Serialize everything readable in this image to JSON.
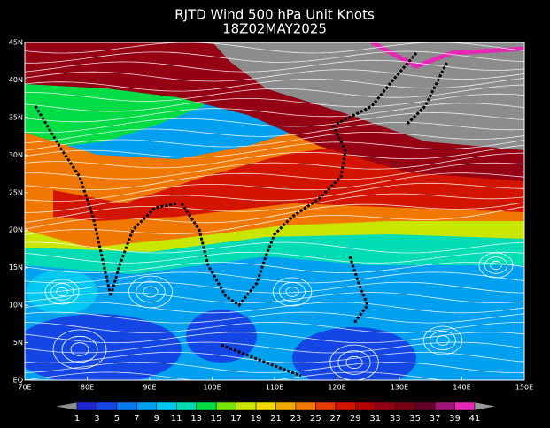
{
  "title": "RJTD Wind 500 hPa Unit Knots",
  "subtitle": "18Z02MAY2025",
  "map": {
    "lat_ticks": [
      {
        "value": 0,
        "label": "EQ"
      },
      {
        "value": 5,
        "label": "5N"
      },
      {
        "value": 10,
        "label": "10N"
      },
      {
        "value": 15,
        "label": "15N"
      },
      {
        "value": 20,
        "label": "20N"
      },
      {
        "value": 25,
        "label": "25N"
      },
      {
        "value": 30,
        "label": "30N"
      },
      {
        "value": 35,
        "label": "35N"
      },
      {
        "value": 40,
        "label": "40N"
      },
      {
        "value": 45,
        "label": "45N"
      }
    ],
    "lon_ticks": [
      {
        "value": 70,
        "label": "70E"
      },
      {
        "value": 80,
        "label": "80E"
      },
      {
        "value": 90,
        "label": "90E"
      },
      {
        "value": 100,
        "label": "100E"
      },
      {
        "value": 110,
        "label": "110E"
      },
      {
        "value": 120,
        "label": "120E"
      },
      {
        "value": 130,
        "label": "130E"
      },
      {
        "value": 140,
        "label": "140E"
      },
      {
        "value": 150,
        "label": "150E"
      }
    ]
  },
  "colorbar": {
    "levels": [
      1,
      3,
      5,
      7,
      9,
      11,
      13,
      15,
      17,
      19,
      21,
      23,
      25,
      27,
      29,
      31,
      33,
      35,
      37,
      39,
      41
    ],
    "colors": [
      "#8c8c8c",
      "#1e28d2",
      "#1446e6",
      "#0a78f0",
      "#00a0f0",
      "#00c8f0",
      "#00dcb4",
      "#00dc46",
      "#78e600",
      "#c8e600",
      "#f0dc00",
      "#f0aa00",
      "#f07800",
      "#e63c00",
      "#d21400",
      "#b40000",
      "#960014",
      "#780014",
      "#640028",
      "#a01478",
      "#e628b4",
      "#999999"
    ]
  }
}
